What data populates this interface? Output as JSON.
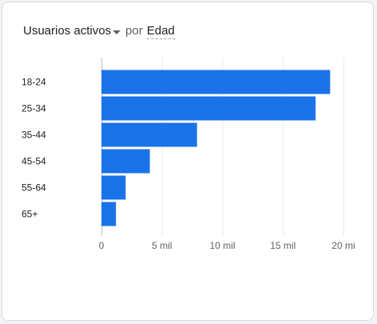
{
  "header": {
    "metric_label": "Usuarios activos",
    "connector": "por",
    "dimension_label": "Edad",
    "dropdown_icon": "caret-down-icon"
  },
  "colors": {
    "bar": "#1a73e8",
    "grid": "#e8eaed",
    "axis": "#bdc1c6"
  },
  "chart_data": {
    "type": "bar",
    "orientation": "horizontal",
    "categories": [
      "18-24",
      "25-34",
      "35-44",
      "45-54",
      "55-64",
      "65+"
    ],
    "values": [
      18900,
      17700,
      7900,
      4000,
      2000,
      1200
    ],
    "xlim": [
      0,
      20000
    ],
    "x_ticks": [
      0,
      5000,
      10000,
      15000,
      20000
    ],
    "x_tick_labels": [
      "0",
      "5 mil",
      "10 mil",
      "15 mil",
      "20 mi"
    ],
    "grid": true
  }
}
